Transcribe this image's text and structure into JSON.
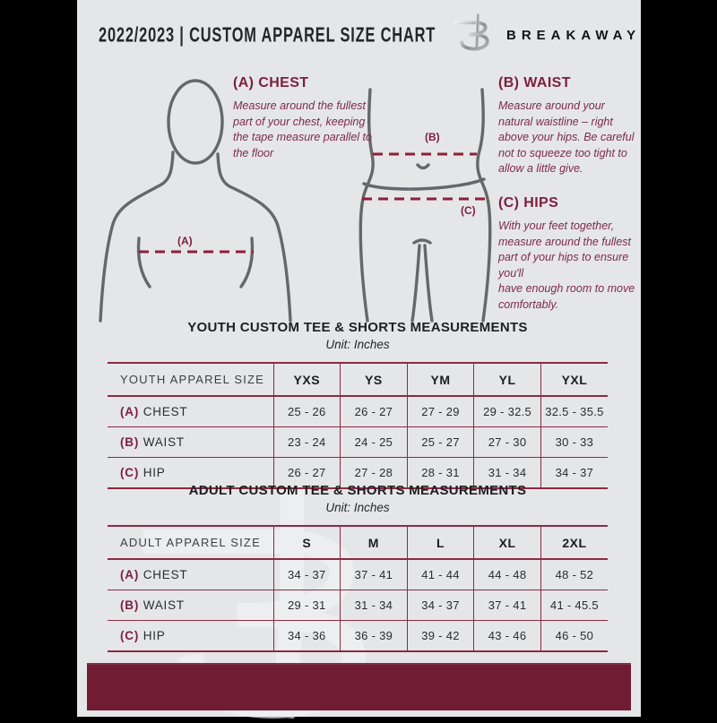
{
  "colors": {
    "page_bg": "#e5e6e8",
    "maroon_text": "#7c1f3c",
    "maroon_bar": "#701d33",
    "table_border": "#8b2a42",
    "figure_stroke": "#65676b"
  },
  "header": {
    "title": "2022/2023  |  CUSTOM APPAREL SIZE CHART",
    "brand": "BREAKAWAY",
    "logo_icon": "breakaway-b-logo"
  },
  "sections": {
    "chest": {
      "heading": "(A) CHEST",
      "body": "Measure around the fullest part of your chest, keeping the tape measure parallel to the floor"
    },
    "waist": {
      "heading": "(B) WAIST",
      "body": "Measure around your natural waistline – right above your hips. Be careful not to squeeze too tight to allow a little give."
    },
    "hips": {
      "heading": "(C) HIPS",
      "body_line1": "With your feet together, measure around the fullest part of your hips to ensure you'll",
      "body_line2": "have enough room to move comfortably."
    }
  },
  "diagram_labels": {
    "a": "(A)",
    "b": "(B)",
    "c": "(C)"
  },
  "youth_table": {
    "title": "YOUTH CUSTOM TEE & SHORTS MEASUREMENTS",
    "unit": "Unit: Inches",
    "header": [
      "YOUTH APPAREL SIZE",
      "YXS",
      "YS",
      "YM",
      "YL",
      "YXL"
    ],
    "rows": [
      {
        "key": "(A)",
        "name": "CHEST",
        "values": [
          "25 - 26",
          "26 - 27",
          "27 - 29",
          "29 - 32.5",
          "32.5 - 35.5"
        ]
      },
      {
        "key": "(B)",
        "name": "WAIST",
        "values": [
          "23 - 24",
          "24 - 25",
          "25 - 27",
          "27 - 30",
          "30 - 33"
        ]
      },
      {
        "key": "(C)",
        "name": "HIP",
        "values": [
          "26 - 27",
          "27 - 28",
          "28 - 31",
          "31 - 34",
          "34 - 37"
        ]
      }
    ]
  },
  "adult_table": {
    "title": "ADULT CUSTOM TEE & SHORTS MEASUREMENTS",
    "unit": "Unit: Inches",
    "header": [
      "ADULT APPAREL SIZE",
      "S",
      "M",
      "L",
      "XL",
      "2XL"
    ],
    "rows": [
      {
        "key": "(A)",
        "name": "CHEST",
        "values": [
          "34 - 37",
          "37 - 41",
          "41 - 44",
          "44 - 48",
          "48 - 52"
        ]
      },
      {
        "key": "(B)",
        "name": "WAIST",
        "values": [
          "29 - 31",
          "31 - 34",
          "34 - 37",
          "37 - 41",
          "41 - 45.5"
        ]
      },
      {
        "key": "(C)",
        "name": "HIP",
        "values": [
          "34 - 36",
          "36 - 39",
          "39 - 42",
          "43 - 46",
          "46 - 50"
        ]
      }
    ]
  }
}
